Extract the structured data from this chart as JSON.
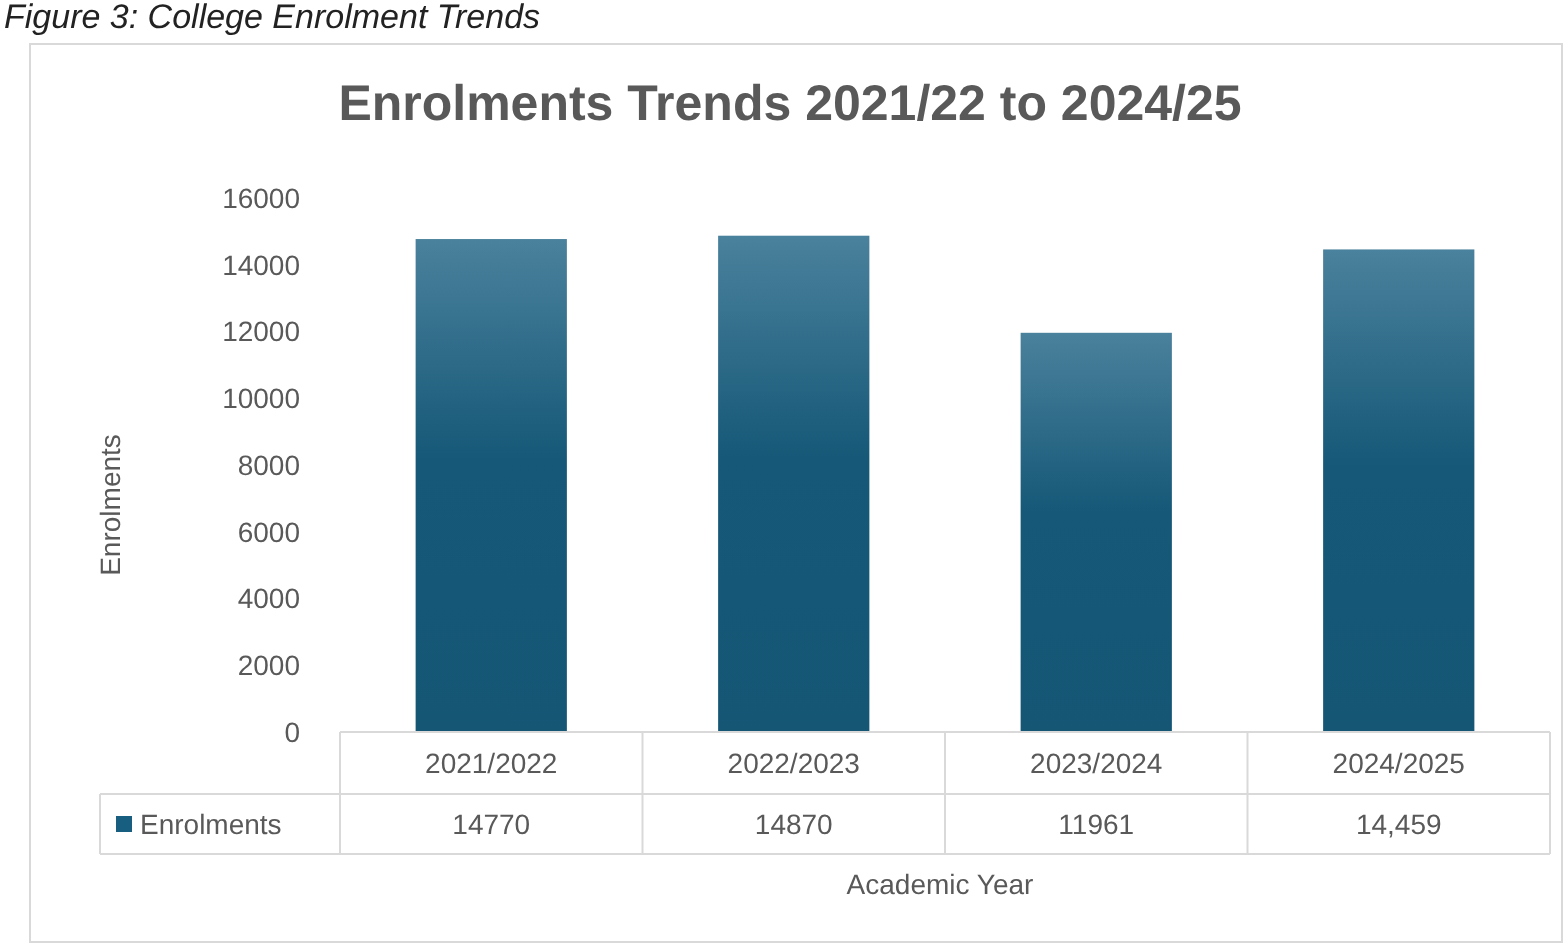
{
  "chart_data": {
    "type": "bar",
    "title": "Enrolments Trends 2021/22 to 2024/25",
    "xlabel": "Academic Year",
    "ylabel": "Enrolments",
    "annotations": [
      "Figure 3: College Enrolment Trends"
    ],
    "categories": [
      "2021/2022",
      "2022/2023",
      "2023/2024",
      "2024/2025"
    ],
    "series": [
      {
        "name": "Enrolments",
        "color": "#175e80",
        "values": [
          14770,
          14870,
          11961,
          14459
        ],
        "value_labels": [
          "14770",
          "14870",
          "11961",
          "14,459"
        ]
      }
    ],
    "ylim": [
      0,
      16000
    ],
    "yticks": [
      0,
      2000,
      4000,
      6000,
      8000,
      10000,
      12000,
      14000,
      16000
    ],
    "grid": false,
    "legend": "bottom"
  }
}
